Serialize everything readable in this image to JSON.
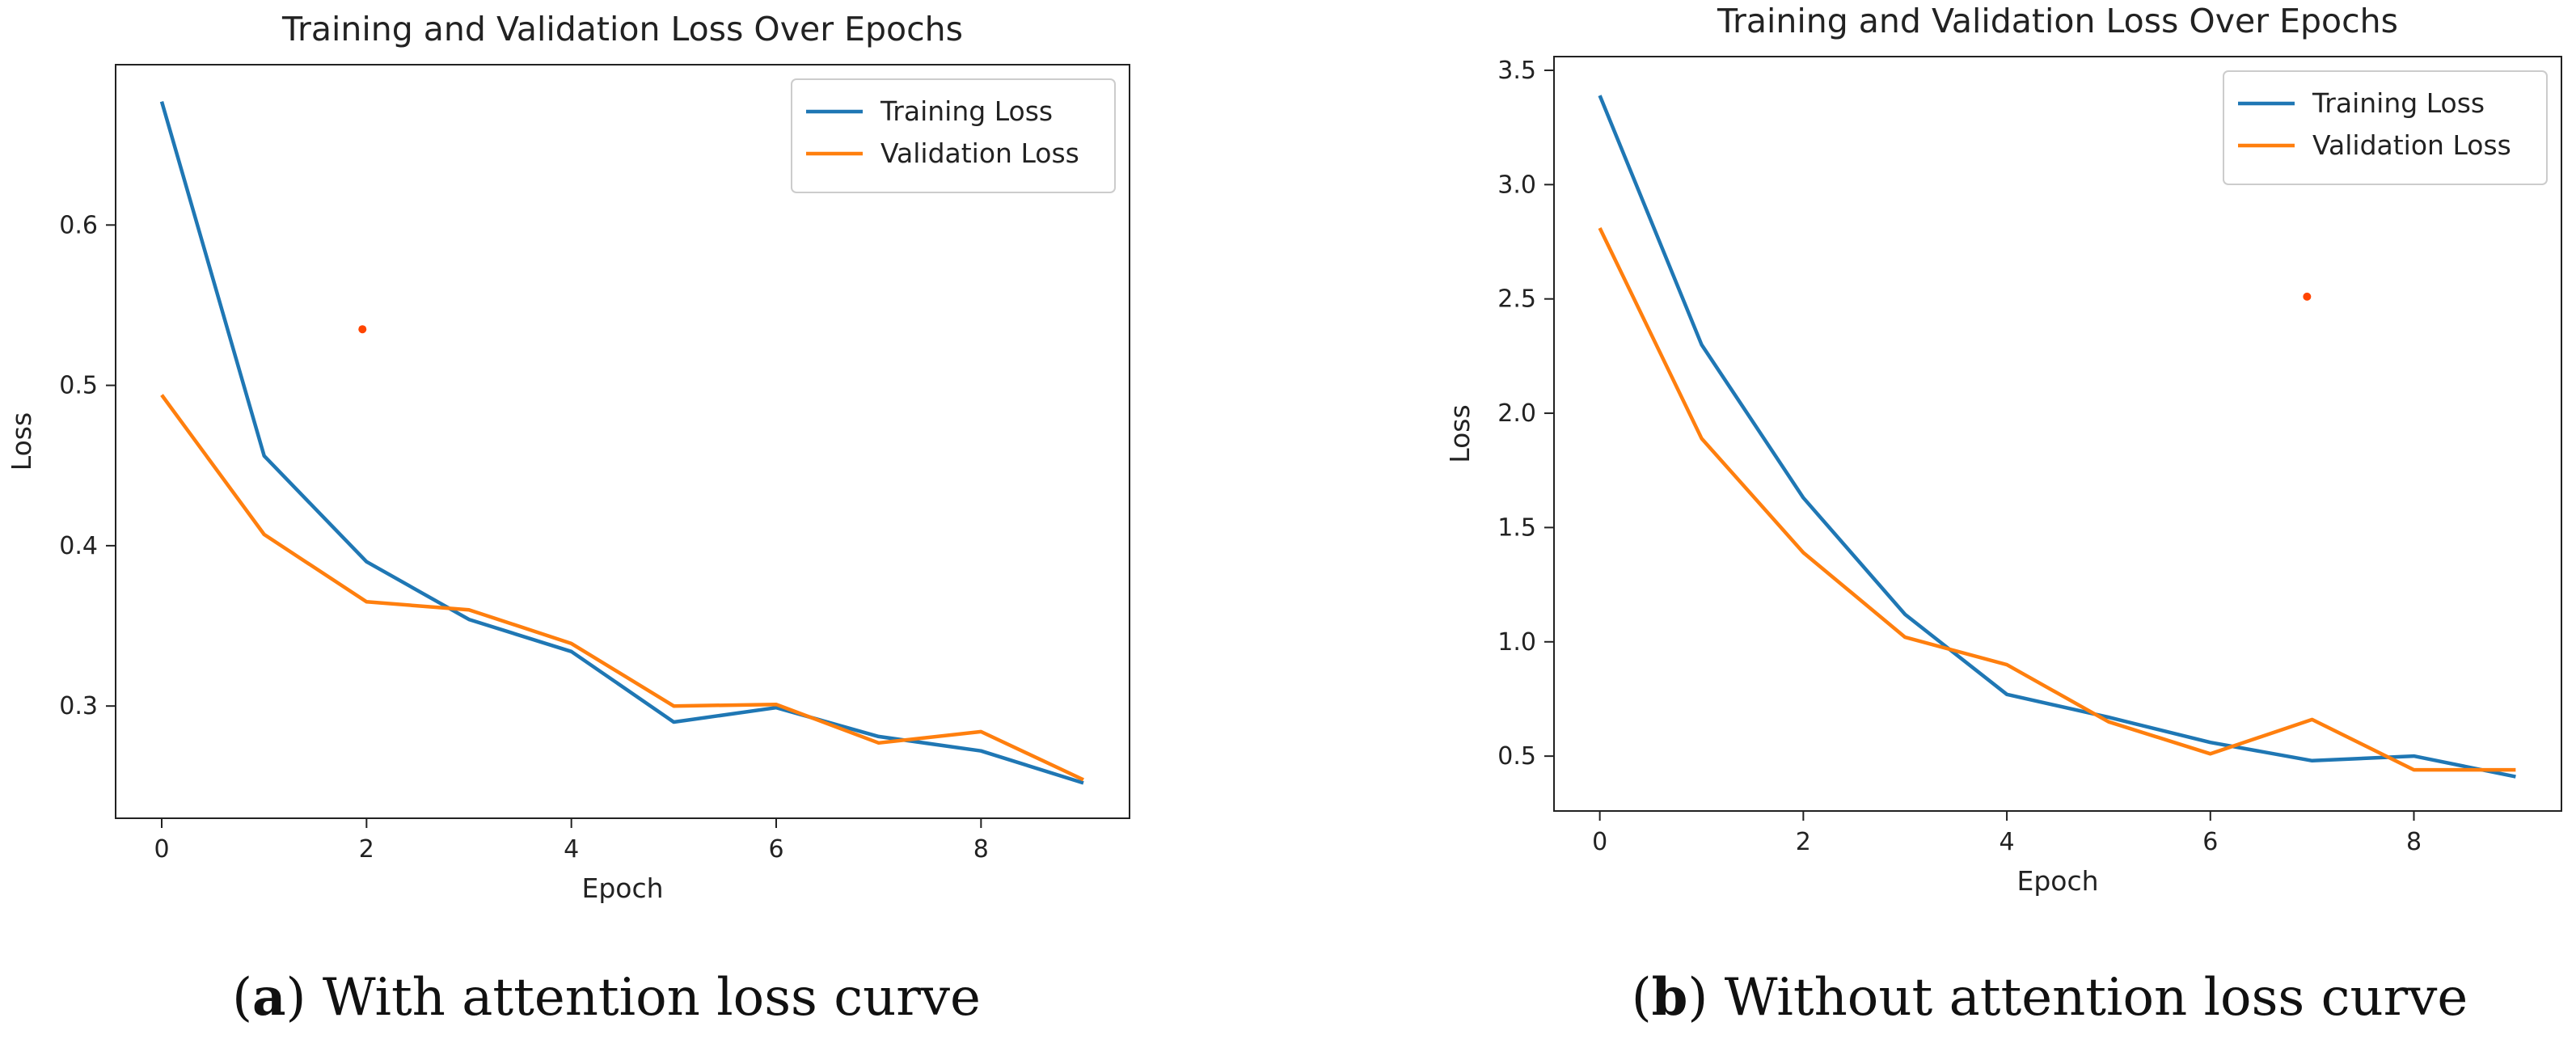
{
  "colors": {
    "training": "#1f77b4",
    "validation": "#ff7f0e",
    "stray_dot": "#ff4500",
    "axes": "#222222",
    "legend_border": "#cccccc"
  },
  "chart_data": [
    {
      "type": "line",
      "title": "Training and Validation Loss Over Epochs",
      "xlabel": "Epoch",
      "ylabel": "Loss",
      "xlim": [
        -0.45,
        9.45
      ],
      "ylim": [
        0.23,
        0.7
      ],
      "x": [
        0,
        1,
        2,
        3,
        4,
        5,
        6,
        7,
        8,
        9
      ],
      "xticks": [
        0,
        2,
        4,
        6,
        8
      ],
      "xtick_labels": [
        "0",
        "2",
        "4",
        "6",
        "8"
      ],
      "yticks": [
        0.3,
        0.4,
        0.5,
        0.6
      ],
      "ytick_labels": [
        "0.3",
        "0.4",
        "0.5",
        "0.6"
      ],
      "grid": false,
      "legend_position": "top-right",
      "series": [
        {
          "name": "Training Loss",
          "values": [
            0.677,
            0.456,
            0.39,
            0.354,
            0.334,
            0.29,
            0.299,
            0.281,
            0.272,
            0.252
          ]
        },
        {
          "name": "Validation Loss",
          "values": [
            0.494,
            0.407,
            0.365,
            0.36,
            0.339,
            0.3,
            0.301,
            0.277,
            0.284,
            0.254
          ]
        }
      ],
      "stray_point": {
        "x": 1.96,
        "y": 0.535
      },
      "caption": {
        "label": "a",
        "text": " With attention loss curve"
      }
    },
    {
      "type": "line",
      "title": "Training and Validation Loss Over Epochs",
      "xlabel": "Epoch",
      "ylabel": "Loss",
      "xlim": [
        -0.45,
        9.45
      ],
      "ylim": [
        0.26,
        3.56
      ],
      "x": [
        0,
        1,
        2,
        3,
        4,
        5,
        6,
        7,
        8,
        9
      ],
      "xticks": [
        0,
        2,
        4,
        6,
        8
      ],
      "xtick_labels": [
        "0",
        "2",
        "4",
        "6",
        "8"
      ],
      "yticks": [
        0.5,
        1.0,
        1.5,
        2.0,
        2.5,
        3.0,
        3.5
      ],
      "ytick_labels": [
        "0.5",
        "1.0",
        "1.5",
        "2.0",
        "2.5",
        "3.0",
        "3.5"
      ],
      "grid": false,
      "legend_position": "top-right",
      "series": [
        {
          "name": "Training Loss",
          "values": [
            3.39,
            2.3,
            1.63,
            1.12,
            0.77,
            0.67,
            0.56,
            0.48,
            0.5,
            0.41
          ]
        },
        {
          "name": "Validation Loss",
          "values": [
            2.81,
            1.89,
            1.39,
            1.02,
            0.9,
            0.65,
            0.51,
            0.66,
            0.44,
            0.44
          ]
        }
      ],
      "stray_point": {
        "x": 6.95,
        "y": 2.51
      },
      "caption": {
        "label": "b",
        "text": " Without attention loss curve"
      }
    }
  ]
}
